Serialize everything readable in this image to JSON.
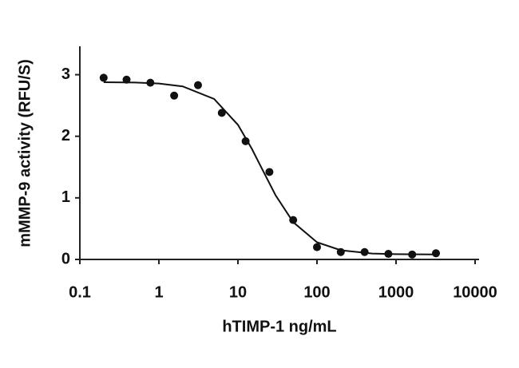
{
  "chart_data": {
    "type": "scatter",
    "x_label": "hTIMP-1 ng/mL",
    "y_label": "mMMP-9 activity (RFU/S)",
    "x": [
      0.2,
      0.39,
      0.78,
      1.56,
      3.125,
      6.25,
      12.5,
      25,
      50,
      100,
      200,
      400,
      800,
      1600,
      3200
    ],
    "values": [
      2.95,
      2.92,
      2.87,
      2.66,
      2.83,
      2.38,
      1.92,
      1.42,
      0.64,
      0.2,
      0.12,
      0.12,
      0.09,
      0.08,
      0.1
    ],
    "color": "#111111",
    "curve": {
      "x": [
        0.2,
        0.5,
        1,
        2,
        5,
        10,
        15,
        20,
        30,
        50,
        100,
        200,
        500,
        1000,
        3200
      ],
      "values": [
        2.878,
        2.872,
        2.857,
        2.811,
        2.605,
        2.185,
        1.797,
        1.48,
        1.041,
        0.605,
        0.279,
        0.149,
        0.096,
        0.085,
        0.081
      ]
    },
    "xscale": "log",
    "xlim": [
      0.1,
      10000
    ],
    "xticks": [
      0.1,
      1,
      10,
      100,
      1000,
      10000
    ],
    "ylim": [
      0,
      3.5
    ],
    "yticks": [
      0,
      1,
      2,
      3
    ],
    "grid": false
  }
}
